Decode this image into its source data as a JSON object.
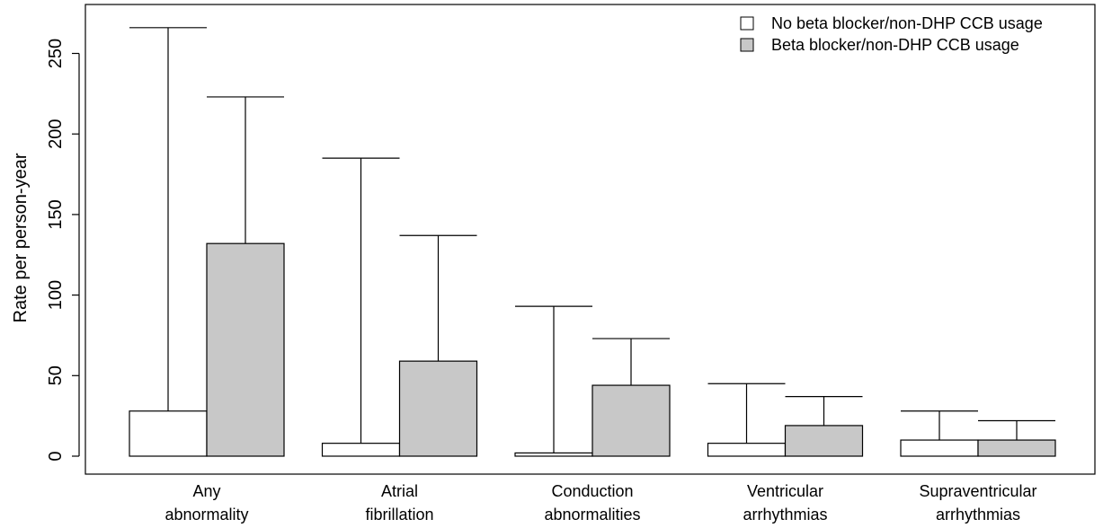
{
  "chart_data": {
    "type": "bar",
    "title": "",
    "xlabel": "",
    "ylabel": "Rate per person-year",
    "ylim": [
      -5,
      262
    ],
    "yticks": [
      0,
      50,
      100,
      150,
      200,
      250
    ],
    "grid": false,
    "legend_position": "top-right",
    "categories": [
      [
        "Any",
        "abnormality"
      ],
      [
        "Atrial",
        "fibrillation"
      ],
      [
        "Conduction",
        "abnormalities"
      ],
      [
        "Ventricular",
        "arrhythmias"
      ],
      [
        "Supraventricular",
        "arrhythmias"
      ]
    ],
    "series": [
      {
        "name": "No beta blocker/non-DHP CCB usage",
        "color": "#ffffff",
        "values": [
          28,
          8,
          2,
          8,
          10
        ],
        "upper": [
          266,
          185,
          93,
          45,
          28
        ]
      },
      {
        "name": "Beta blocker/non-DHP CCB usage",
        "color": "#c8c8c8",
        "values": [
          132,
          59,
          44,
          19,
          10
        ],
        "upper": [
          223,
          137,
          73,
          37,
          22
        ]
      }
    ]
  }
}
